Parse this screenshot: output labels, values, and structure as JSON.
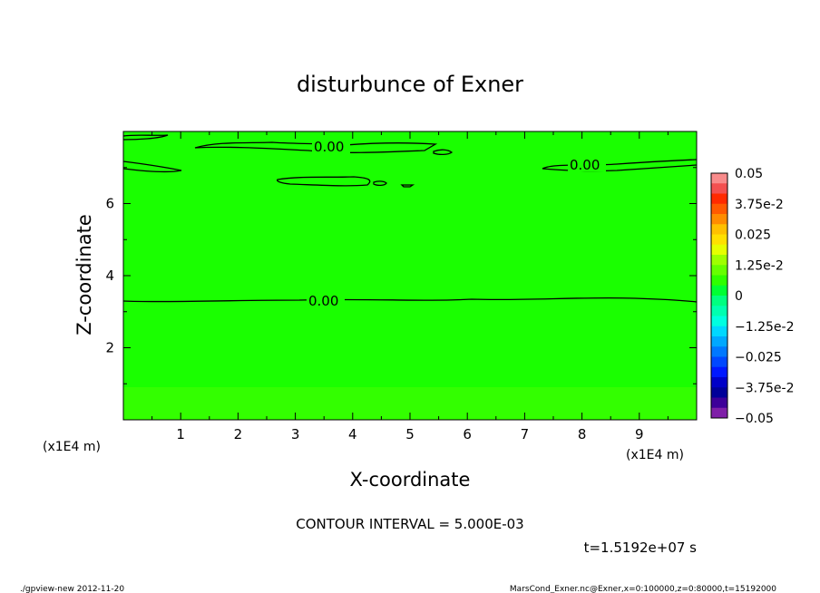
{
  "chart_data": {
    "type": "heatmap",
    "title": "disturbunce of Exner",
    "xlabel": "X-coordinate",
    "ylabel": "Z-coordinate",
    "x_unit": "(x1E4 m)",
    "y_unit": "(x1E4 m)",
    "xlim": [
      0,
      10
    ],
    "ylim": [
      0,
      8
    ],
    "x_ticks": [
      "1",
      "2",
      "3",
      "4",
      "5",
      "6",
      "7",
      "8",
      "9"
    ],
    "y_ticks": [
      "2",
      "4",
      "6"
    ],
    "contour_label": "0.00",
    "contour_interval": "CONTOUR INTERVAL = 5.000E-03",
    "time_label": "t=1.5192e+07 s",
    "field_value": 0,
    "colorbar": {
      "labels": [
        "0.05",
        "3.75e-2",
        "0.025",
        "1.25e-2",
        "0",
        "−1.25e-2",
        "−0.025",
        "−3.75e-2",
        "−0.05"
      ],
      "colors": [
        "#f88b8b",
        "#f35050",
        "#ff2a00",
        "#ff5a00",
        "#ff8c00",
        "#ffc000",
        "#ffe000",
        "#e6ff00",
        "#9fff00",
        "#66ff00",
        "#2eff00",
        "#00ff33",
        "#00ff80",
        "#00ffb0",
        "#00ffe0",
        "#00d8ff",
        "#00a8ff",
        "#0078ff",
        "#0048ff",
        "#0018ff",
        "#0000c8",
        "#000099",
        "#3d0099",
        "#7f1fa8"
      ]
    },
    "plot_colors": {
      "field": "#1aff00",
      "bottom_band": "#33ff00"
    }
  },
  "footer": {
    "left": "./gpview-new  2012-11-20",
    "right": "MarsCond_Exner.nc@Exner,x=0:100000,z=0:80000,t=15192000"
  }
}
